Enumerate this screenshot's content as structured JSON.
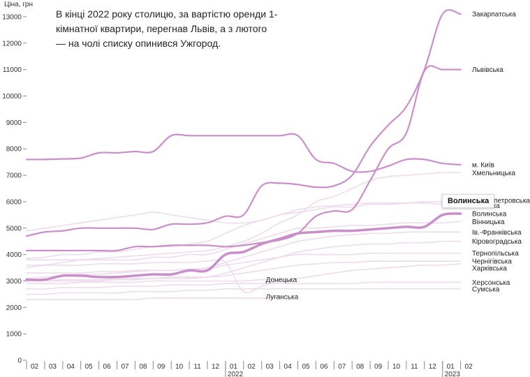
{
  "annotation": "В кінці 2022 року столицю, за вартістю оренди 1-кімнатної квартири, перегнав Львів, а з лютого — на чолі списку опинився Ужгород.",
  "tooltip": "Волинська",
  "chart_data": {
    "type": "line",
    "title": "",
    "ylabel": "Ціна, грн",
    "xlabel": "",
    "ylim": [
      0,
      13000
    ],
    "yticks": [
      0,
      1000,
      2000,
      3000,
      4000,
      5000,
      6000,
      7000,
      8000,
      9000,
      10000,
      11000,
      12000,
      13000
    ],
    "x_tick_labels": [
      "02",
      "03",
      "04",
      "05",
      "06",
      "07",
      "08",
      "09",
      "10",
      "11",
      "12",
      "01",
      "02",
      "03",
      "04",
      "05",
      "06",
      "07",
      "08",
      "09",
      "10",
      "11",
      "12",
      "01",
      "02"
    ],
    "year_labels": [
      {
        "index": 11,
        "label": "2022"
      },
      {
        "index": 23,
        "label": "2023"
      }
    ],
    "colors": {
      "highlight": "#c98fc9",
      "muted": "#ecdcec",
      "label": "#222222"
    },
    "series": [
      {
        "name": "Закарпатська",
        "highlight": true,
        "label_dy": 0,
        "values": [
          4700,
          4850,
          4900,
          5000,
          5000,
          5000,
          5000,
          4950,
          5150,
          5150,
          5200,
          5450,
          5500,
          6600,
          6700,
          6650,
          6550,
          6600,
          7000,
          8100,
          8900,
          9600,
          11000,
          13100,
          13100
        ]
      },
      {
        "name": "Львівська",
        "highlight": true,
        "label_dy": 0,
        "values": [
          4150,
          4150,
          4150,
          4150,
          4150,
          4150,
          4300,
          4300,
          4350,
          4350,
          4350,
          4300,
          4350,
          4450,
          4550,
          4800,
          5450,
          5650,
          5700,
          6800,
          8000,
          8600,
          10950,
          11000,
          11000
        ]
      },
      {
        "name": "м. Київ",
        "highlight": true,
        "label_dy": 0,
        "values": [
          7600,
          7600,
          7620,
          7650,
          7850,
          7850,
          7900,
          7900,
          8500,
          8500,
          8500,
          8500,
          8500,
          8500,
          8500,
          8500,
          7600,
          7450,
          7150,
          7150,
          7350,
          7600,
          7600,
          7450,
          7400
        ]
      },
      {
        "name": "Волинська",
        "highlight": true,
        "bold": true,
        "label_dy": 0,
        "values": [
          3050,
          3050,
          3200,
          3200,
          3150,
          3150,
          3200,
          3250,
          3250,
          3400,
          3400,
          4000,
          4100,
          4400,
          4600,
          4800,
          4850,
          4900,
          4900,
          4950,
          5000,
          5050,
          5050,
          5500,
          5550
        ]
      },
      {
        "name": "Хмельницька",
        "highlight": false,
        "label_dy": 0,
        "values": [
          3500,
          3600,
          3700,
          3800,
          3850,
          3900,
          3950,
          4000,
          4050,
          4100,
          4150,
          4300,
          4500,
          4800,
          5200,
          5500,
          6000,
          6200,
          6500,
          6800,
          6950,
          7000,
          7050,
          7100,
          7100
        ]
      },
      {
        "name": "Дніпропетровська",
        "highlight": false,
        "label_dy": 0,
        "values": [
          4900,
          5000,
          5100,
          5200,
          5300,
          5400,
          5500,
          5600,
          5500,
          5400,
          5300,
          5200,
          5200,
          5300,
          5500,
          5600,
          5700,
          5800,
          5800,
          5900,
          5900,
          5950,
          6000,
          6000,
          6050
        ]
      },
      {
        "name": "Київська",
        "highlight": false,
        "label_dy": 0,
        "values": [
          3850,
          3900,
          4000,
          4000,
          4100,
          4100,
          4200,
          4300,
          4300,
          4400,
          4500,
          4800,
          5100,
          5300,
          5500,
          5700,
          5800,
          5850,
          5900,
          5950,
          5950,
          5950,
          5950,
          5900,
          5850
        ]
      },
      {
        "name": "Вінницька",
        "highlight": false,
        "label_dy": 0,
        "values": [
          3800,
          3800,
          3800,
          3800,
          3800,
          3800,
          3800,
          3900,
          3900,
          4000,
          4000,
          4200,
          4400,
          4600,
          4800,
          5000,
          5000,
          5050,
          5100,
          5100,
          5150,
          5200,
          5200,
          5200,
          5250
        ]
      },
      {
        "name": "Ів.-Франківська",
        "highlight": false,
        "label_dy": 0,
        "values": [
          3100,
          3150,
          3200,
          3250,
          3250,
          3300,
          3350,
          3400,
          3400,
          3450,
          3500,
          3700,
          3900,
          4100,
          4300,
          4500,
          4600,
          4700,
          4750,
          4800,
          4800,
          4850,
          4850,
          4850,
          4850
        ]
      },
      {
        "name": "Кіровоградська",
        "highlight": false,
        "label_dy": 0,
        "values": [
          3000,
          3000,
          3000,
          3000,
          3000,
          3050,
          3050,
          3100,
          3100,
          3100,
          3150,
          3300,
          3500,
          3700,
          3900,
          4100,
          4200,
          4300,
          4350,
          4400,
          4400,
          4450,
          4450,
          4500,
          4500
        ]
      },
      {
        "name": "Тернопільська",
        "highlight": false,
        "label_dy": 0,
        "values": [
          3300,
          3300,
          3300,
          3300,
          3350,
          3350,
          3400,
          3400,
          3400,
          3450,
          3450,
          3600,
          3700,
          3800,
          3900,
          4000,
          4000,
          4000,
          4000,
          4050,
          4050,
          4050,
          4050,
          4050,
          4050
        ]
      },
      {
        "name": "Чернігівська",
        "highlight": false,
        "label_dy": 0,
        "values": [
          3000,
          3000,
          3050,
          3050,
          3050,
          3100,
          3100,
          3100,
          3150,
          3150,
          3150,
          3200,
          3300,
          3400,
          3500,
          3600,
          3650,
          3700,
          3700,
          3750,
          3750,
          3750,
          3750,
          3750,
          3750
        ]
      },
      {
        "name": "Харківська",
        "highlight": false,
        "label_dy": 6,
        "values": [
          3600,
          3600,
          3600,
          3600,
          3650,
          3650,
          3650,
          3700,
          3700,
          3700,
          3750,
          3700,
          2600,
          2800,
          3000,
          3100,
          3200,
          3300,
          3400,
          3450,
          3500,
          3550,
          3600,
          3600,
          3650
        ]
      },
      {
        "name": "Херсонська",
        "highlight": false,
        "label_dy": 0,
        "values": [
          2700,
          2700,
          2750,
          2750,
          2750,
          2800,
          2800,
          2800,
          2850,
          2850,
          2850,
          2900,
          2900,
          2900,
          2900,
          2900,
          2900,
          2900,
          2900,
          2950,
          2950,
          2950,
          2950,
          2950,
          2950
        ]
      },
      {
        "name": "Сумська",
        "highlight": false,
        "label_dy": 0,
        "values": [
          2500,
          2500,
          2550,
          2550,
          2550,
          2550,
          2600,
          2600,
          2600,
          2650,
          2650,
          2700,
          2700,
          2700,
          2700,
          2700,
          2700,
          2700,
          2700,
          2700,
          2700,
          2700,
          2700,
          2700,
          2700
        ]
      },
      {
        "name": "Донецька",
        "highlight": false,
        "label_dy": 0,
        "values": [
          2900,
          2900,
          2900,
          2950,
          2950,
          2950,
          2950,
          3000,
          3000,
          3000,
          3000,
          3000,
          3000,
          3050,
          3050
        ]
      },
      {
        "name": "Луганська",
        "highlight": false,
        "label_dy": 0,
        "values": [
          2300,
          2300,
          2300,
          2300,
          2300,
          2300,
          2300,
          2350,
          2350,
          2350,
          2350,
          2350,
          2350,
          2350,
          2400
        ]
      }
    ]
  }
}
